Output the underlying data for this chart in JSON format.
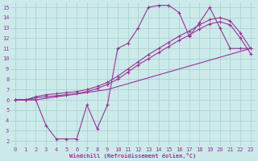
{
  "xlabel": "Windchill (Refroidissement éolien,°C)",
  "bg_color": "#cceaea",
  "grid_color": "#aad4d4",
  "line_color": "#993399",
  "xlim": [
    -0.5,
    23.5
  ],
  "ylim": [
    1.5,
    15.5
  ],
  "xticks": [
    0,
    1,
    2,
    3,
    4,
    5,
    6,
    7,
    8,
    9,
    10,
    11,
    12,
    13,
    14,
    15,
    16,
    17,
    18,
    19,
    20,
    21,
    22,
    23
  ],
  "yticks": [
    2,
    3,
    4,
    5,
    6,
    7,
    8,
    9,
    10,
    11,
    12,
    13,
    14,
    15
  ],
  "line1_x": [
    0,
    1,
    2,
    3,
    4,
    5,
    6,
    7,
    8,
    9,
    10,
    11,
    12,
    13,
    14,
    15,
    16,
    17,
    18,
    19,
    20,
    21,
    22,
    23
  ],
  "line1_y": [
    6,
    6,
    6,
    3.5,
    2.2,
    2.2,
    2.2,
    5.5,
    3.2,
    5.5,
    11,
    11.5,
    13,
    15,
    15.2,
    15.2,
    14.5,
    12.2,
    13.5,
    15,
    13,
    11,
    11,
    11
  ],
  "line2_x": [
    0,
    1,
    2,
    3,
    4,
    5,
    6,
    7,
    8,
    9,
    10,
    11,
    12,
    13,
    14,
    15,
    16,
    17,
    18,
    19,
    20,
    21,
    22,
    23
  ],
  "line2_y": [
    6,
    6,
    6.3,
    6.5,
    6.6,
    6.7,
    6.8,
    7.0,
    7.3,
    7.7,
    8.3,
    9.0,
    9.7,
    10.4,
    11.0,
    11.6,
    12.2,
    12.7,
    13.3,
    13.8,
    14.0,
    13.7,
    12.5,
    11.0
  ],
  "line3_x": [
    0,
    1,
    2,
    3,
    4,
    5,
    6,
    7,
    8,
    9,
    10,
    11,
    12,
    13,
    14,
    15,
    16,
    17,
    18,
    19,
    20,
    21,
    22,
    23
  ],
  "line3_y": [
    6,
    6,
    6.2,
    6.3,
    6.4,
    6.5,
    6.6,
    6.8,
    7.1,
    7.5,
    8.0,
    8.7,
    9.4,
    10.0,
    10.6,
    11.2,
    11.8,
    12.3,
    12.9,
    13.4,
    13.6,
    13.3,
    12.0,
    10.5
  ],
  "line4_x": [
    0,
    2,
    9,
    23
  ],
  "line4_y": [
    6,
    6,
    7,
    11
  ]
}
